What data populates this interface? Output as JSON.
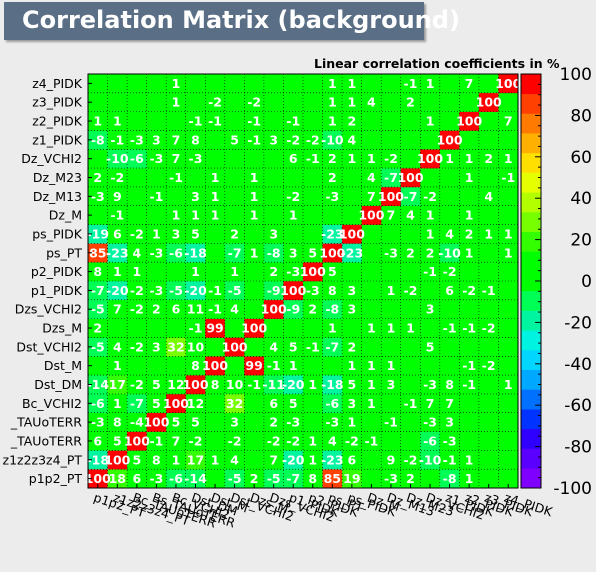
{
  "header": {
    "title": "Correlation Matrix (background)"
  },
  "chart_data": {
    "type": "heatmap",
    "title": "Correlation Matrix (background)",
    "subtitle": "Linear correlation coefficients in %",
    "variables": [
      "p1p2_PT",
      "z1z2z3z4_PT",
      "Bc_TAUoTERR",
      "Bs_TAUoTERR",
      "Bc_VCHI2",
      "Dst_DM",
      "Dst_M",
      "Dst_VCHI2",
      "Dzs_M",
      "Dzs_VCHI2",
      "p1_PIDK",
      "p2_PIDK",
      "ps_PT",
      "ps_PIDK",
      "Dz_M",
      "Dz_M13",
      "Dz_M23",
      "Dz_VCHI2",
      "z1_PIDK",
      "z2_PIDK",
      "z3_PIDK",
      "z4_PIDK"
    ],
    "y_tick_labels": [
      "p1p2_PT",
      "z1z2z3z4_PT",
      "_TAUoTERR",
      "_TAUoTERR",
      "Bc_VCHI2",
      "Dst_DM",
      "Dst_M",
      "Dst_VCHI2",
      "Dzs_M",
      "Dzs_VCHI2",
      "p1_PIDK",
      "p2_PIDK",
      "ps_PT",
      "ps_PIDK",
      "Dz_M",
      "Dz_M13",
      "Dz_M23",
      "Dz_VCHI2",
      "z1_PIDK",
      "z2_PIDK",
      "z3_PIDK",
      "z4_PIDK"
    ],
    "values": [
      [
        100,
        18,
        6,
        -3,
        -6,
        -14,
        null,
        -5,
        2,
        -5,
        -7,
        8,
        85,
        19,
        null,
        -3,
        2,
        null,
        -8,
        1,
        null,
        null
      ],
      [
        -18,
        100,
        5,
        8,
        1,
        17,
        1,
        4,
        null,
        7,
        -20,
        1,
        -23,
        6,
        null,
        9,
        -2,
        -10,
        -1,
        1,
        null,
        null
      ],
      [
        6,
        5,
        100,
        -1,
        7,
        -2,
        null,
        -2,
        null,
        -2,
        -2,
        1,
        4,
        -2,
        -1,
        null,
        null,
        -6,
        -3,
        null,
        null,
        null
      ],
      [
        -3,
        8,
        -4,
        100,
        5,
        5,
        null,
        3,
        null,
        2,
        -3,
        null,
        -3,
        1,
        null,
        -1,
        null,
        -3,
        3,
        null,
        null,
        null
      ],
      [
        -6,
        1,
        -7,
        5,
        100,
        12,
        null,
        32,
        null,
        6,
        5,
        null,
        -6,
        3,
        1,
        null,
        -1,
        7,
        7,
        null,
        null,
        null
      ],
      [
        -14,
        17,
        -2,
        5,
        12,
        100,
        8,
        10,
        -1,
        -11,
        -20,
        1,
        -18,
        5,
        1,
        3,
        null,
        -3,
        8,
        -1,
        null,
        1
      ],
      [
        null,
        1,
        null,
        null,
        null,
        8,
        100,
        null,
        99,
        -1,
        1,
        null,
        null,
        1,
        1,
        1,
        null,
        null,
        null,
        -1,
        -2,
        null
      ],
      [
        -5,
        4,
        -2,
        3,
        32,
        10,
        null,
        100,
        null,
        4,
        5,
        -1,
        -7,
        2,
        null,
        null,
        null,
        5,
        null,
        null,
        null,
        null
      ],
      [
        2,
        null,
        null,
        null,
        null,
        -1,
        99,
        null,
        100,
        null,
        null,
        null,
        1,
        null,
        1,
        1,
        1,
        null,
        -1,
        -1,
        -2,
        null
      ],
      [
        -5,
        7,
        -2,
        2,
        6,
        11,
        -1,
        4,
        null,
        100,
        -9,
        2,
        -8,
        3,
        null,
        null,
        null,
        3,
        null,
        null,
        null,
        null
      ],
      [
        -7,
        -20,
        -2,
        -3,
        -5,
        -20,
        -1,
        -5,
        null,
        -9,
        100,
        -3,
        8,
        3,
        null,
        1,
        -2,
        null,
        6,
        -2,
        -1,
        null
      ],
      [
        8,
        1,
        1,
        null,
        null,
        1,
        null,
        1,
        null,
        2,
        -3,
        100,
        5,
        null,
        null,
        null,
        null,
        -1,
        -2,
        null,
        null,
        null
      ],
      [
        85,
        -23,
        4,
        -3,
        -6,
        -18,
        null,
        -7,
        1,
        -8,
        3,
        5,
        100,
        -23,
        null,
        -3,
        2,
        2,
        -10,
        1,
        null,
        1
      ],
      [
        -19,
        6,
        -2,
        1,
        3,
        5,
        null,
        2,
        null,
        3,
        null,
        null,
        -23,
        100,
        null,
        null,
        null,
        1,
        4,
        2,
        1,
        1
      ],
      [
        null,
        -1,
        null,
        null,
        1,
        1,
        1,
        null,
        1,
        null,
        1,
        null,
        null,
        null,
        100,
        7,
        4,
        1,
        null,
        1,
        null,
        null
      ],
      [
        -3,
        9,
        null,
        -1,
        null,
        3,
        1,
        null,
        1,
        null,
        -2,
        null,
        -3,
        null,
        7,
        100,
        -7,
        -2,
        null,
        null,
        4,
        null
      ],
      [
        2,
        -2,
        null,
        null,
        -1,
        null,
        1,
        null,
        1,
        null,
        null,
        null,
        2,
        null,
        4,
        -7,
        100,
        null,
        null,
        1,
        null,
        -1
      ],
      [
        null,
        -10,
        -6,
        -3,
        7,
        -3,
        null,
        null,
        null,
        null,
        6,
        -1,
        2,
        1,
        1,
        -2,
        null,
        100,
        1,
        1,
        2,
        1
      ],
      [
        -8,
        -1,
        -3,
        3,
        7,
        8,
        null,
        5,
        -1,
        3,
        -2,
        -2,
        -10,
        4,
        null,
        null,
        null,
        null,
        100,
        null,
        null,
        null
      ],
      [
        1,
        1,
        null,
        null,
        null,
        -1,
        -1,
        null,
        -1,
        null,
        -1,
        null,
        1,
        2,
        null,
        null,
        null,
        1,
        null,
        100,
        null,
        7
      ],
      [
        null,
        null,
        null,
        null,
        1,
        null,
        -2,
        null,
        -2,
        null,
        null,
        null,
        1,
        1,
        4,
        null,
        2,
        null,
        null,
        null,
        100,
        null
      ],
      [
        null,
        null,
        null,
        null,
        1,
        null,
        null,
        null,
        null,
        null,
        null,
        null,
        1,
        1,
        null,
        null,
        -1,
        1,
        null,
        7,
        null,
        100
      ]
    ],
    "zlim": [
      -100,
      100
    ],
    "colorbar_ticks": [
      100,
      80,
      60,
      40,
      20,
      0,
      -20,
      -40,
      -60,
      -80,
      -100
    ],
    "palette_colors": [
      "#7f00ff",
      "#5a00ff",
      "#2f00ff",
      "#0033ff",
      "#0070ff",
      "#00a8ff",
      "#00d6ff",
      "#00f2e0",
      "#00f5a0",
      "#00ff55",
      "#00ff00",
      "#00ff00",
      "#33ff00",
      "#77ff00",
      "#b3ff00",
      "#e6ff00",
      "#ffdf00",
      "#ffb000",
      "#ff7a00",
      "#ff4000",
      "#ff0000"
    ],
    "grid": true
  }
}
